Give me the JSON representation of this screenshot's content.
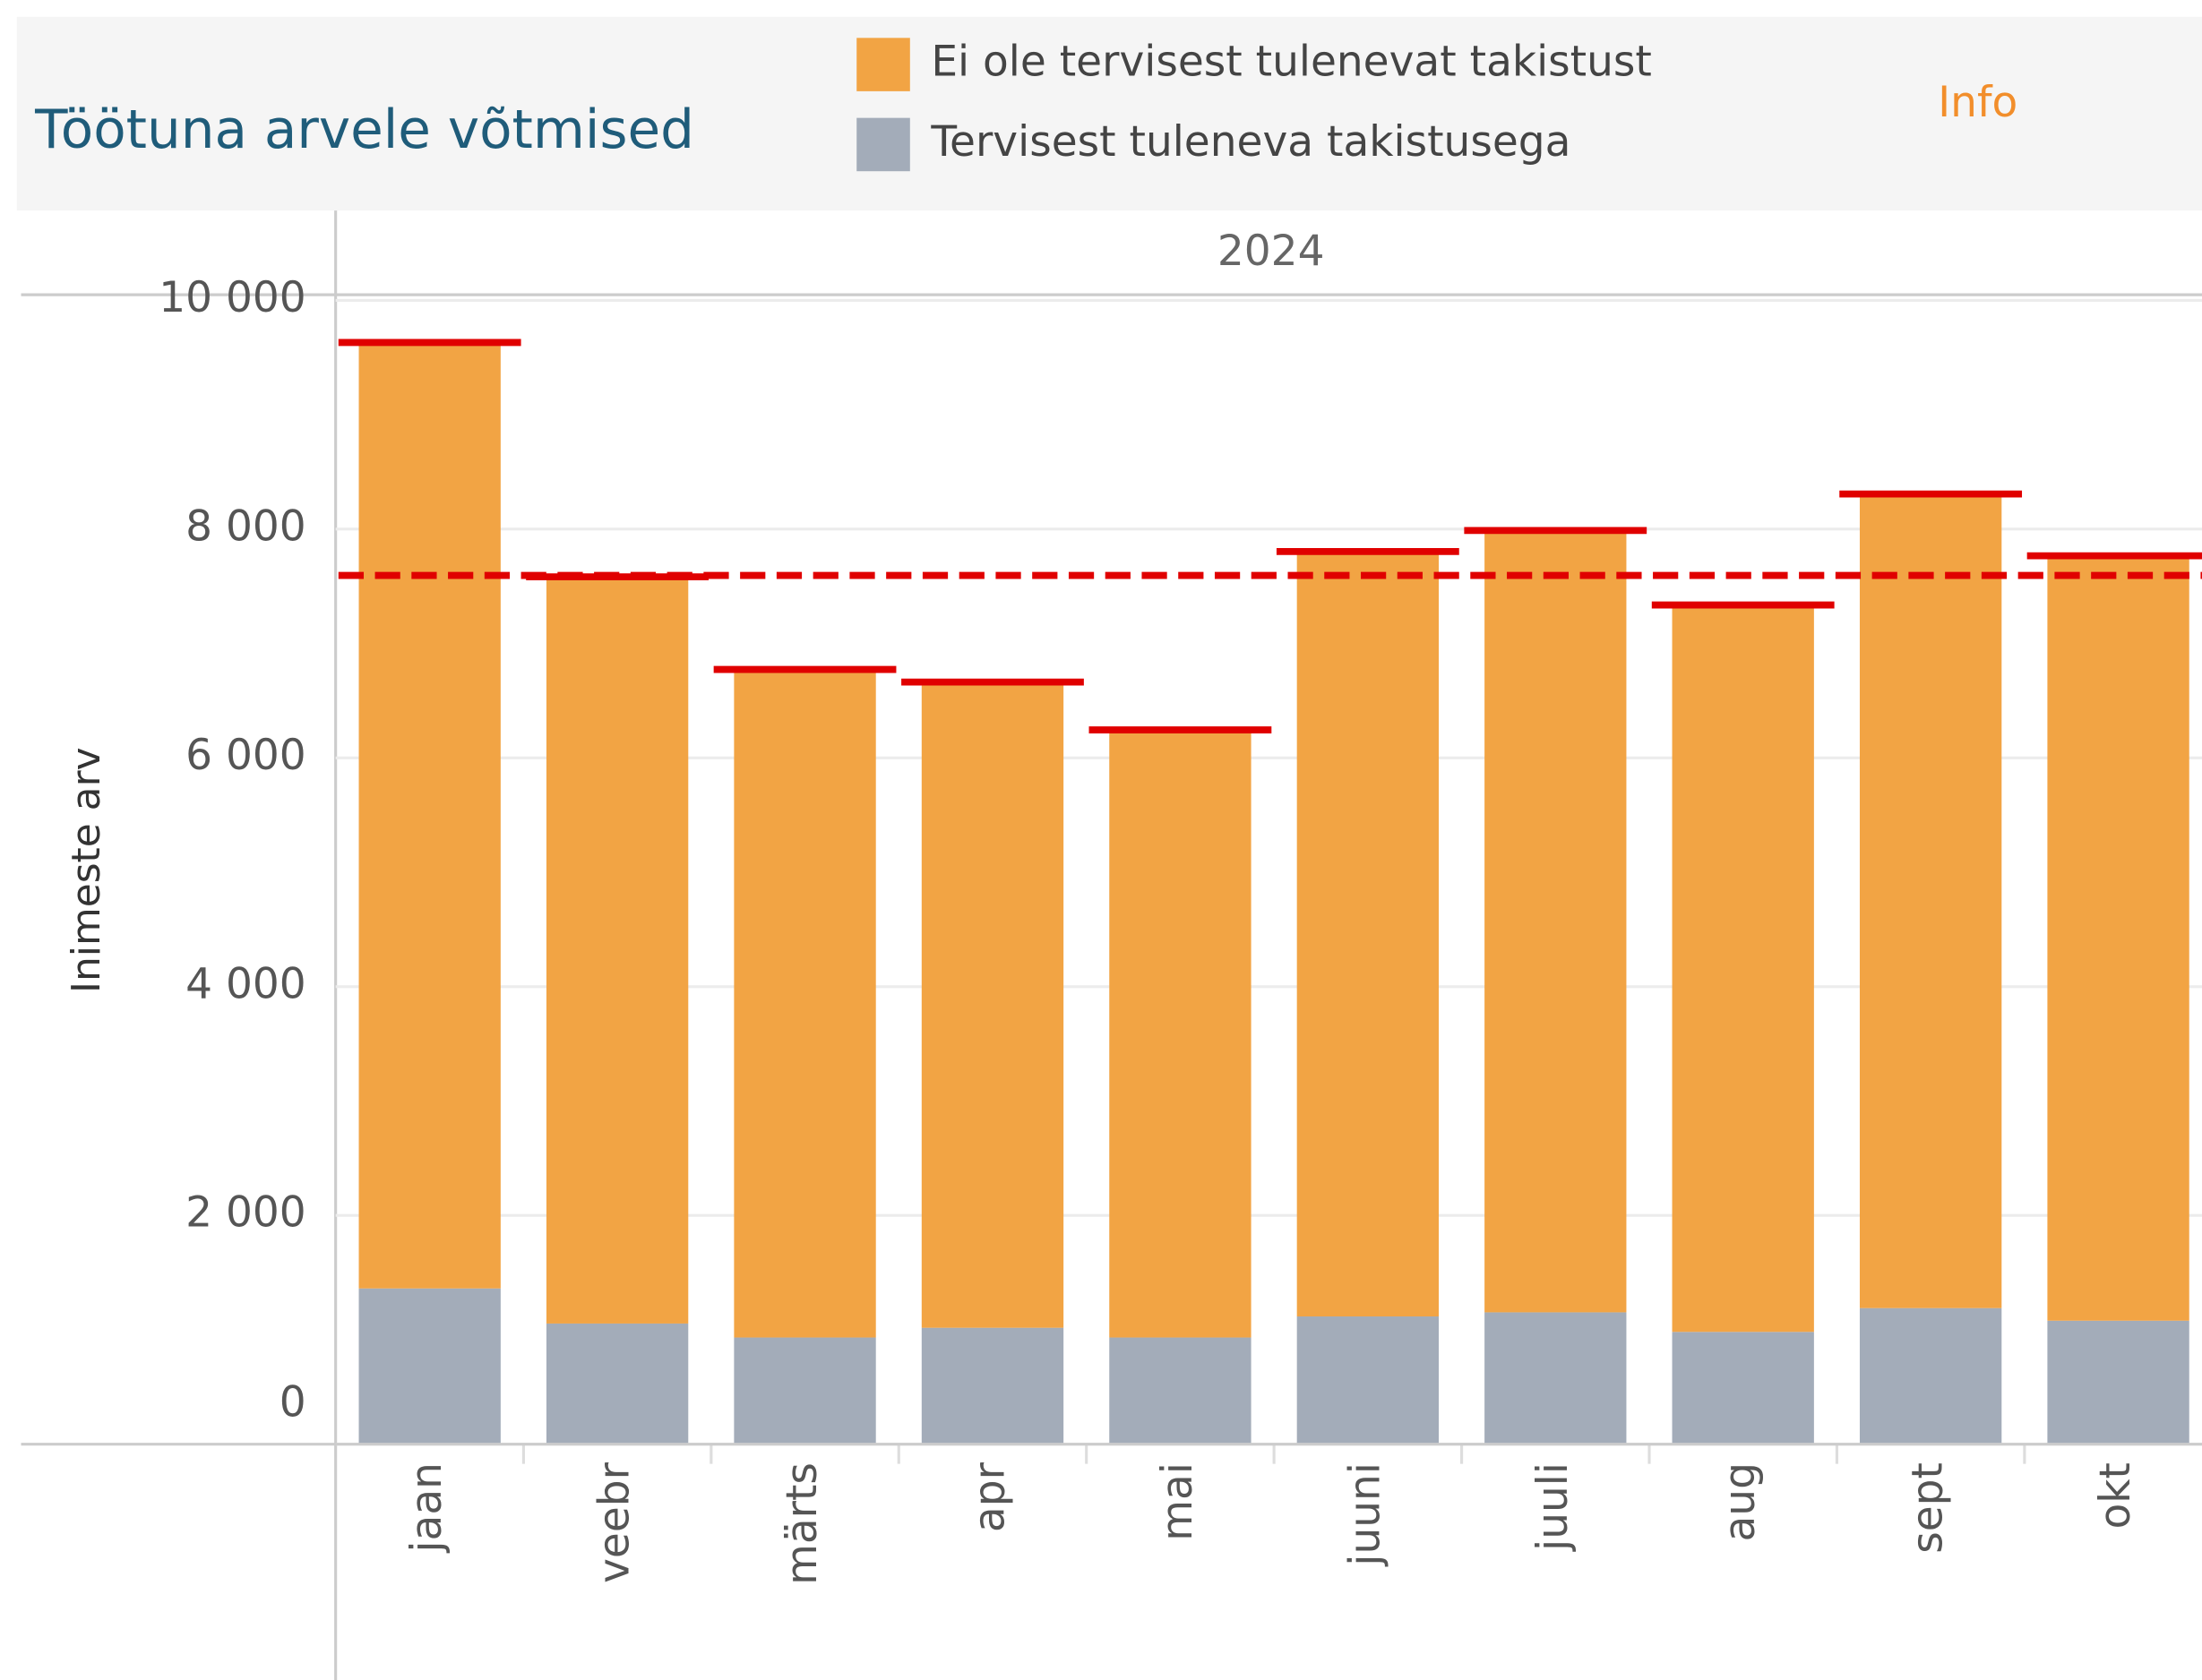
{
  "chart_data": {
    "type": "stacked-bar",
    "title": "Töötuna arvele võtmised",
    "info": "Info",
    "panel_header": "2024",
    "y_label": "Inimeste arv",
    "categories": [
      "jaan",
      "veebr",
      "märts",
      "apr",
      "mai",
      "juuni",
      "juuli",
      "aug",
      "sept",
      "okt"
    ],
    "series": [
      {
        "name": "Tervisest tuleneva takistusega",
        "color": "#a3acb9",
        "values": [
          1362,
          1055,
          933,
          1018,
          933,
          1117,
          1153,
          982,
          1190,
          1080
        ]
      },
      {
        "name": "Ei ole tervisest tulenevat takistust",
        "color": "#f2a444",
        "values": [
          8270,
          6528,
          5840,
          5645,
          5312,
          6687,
          6835,
          6355,
          7117,
          6687
        ]
      }
    ],
    "totals": [
      9632,
      7583,
      6773,
      6663,
      6245,
      7804,
      7988,
      7337,
      8307,
      7767
    ],
    "totals_color": "#e00000",
    "average": 7595,
    "ylim": [
      0,
      10000
    ],
    "yticks": [
      0,
      {
        "value": 2000,
        "label": "2 000"
      },
      {
        "value": 4000,
        "label": "4 000"
      },
      {
        "value": 6000,
        "label": "6 000"
      },
      {
        "value": 8000,
        "label": "8 000"
      },
      {
        "value": 10000,
        "label": "10 000"
      }
    ],
    "grid": true
  }
}
